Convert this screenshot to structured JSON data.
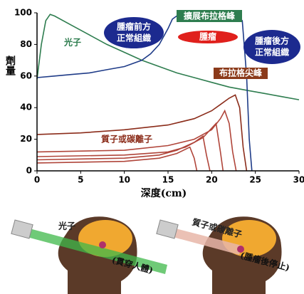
{
  "chart_data": {
    "type": "line",
    "x_label": "深度(cm)",
    "y_label": "劑量",
    "xlim": [
      0,
      30
    ],
    "xticks": [
      0,
      5,
      10,
      15,
      20,
      25,
      30
    ],
    "ylim": [
      0,
      100
    ],
    "yticks": [
      0,
      20,
      40,
      60,
      80,
      100
    ],
    "grid": false,
    "series": [
      {
        "name": "光子",
        "color": "#2e7d4f",
        "x": [
          0,
          0.5,
          1,
          1.5,
          2,
          4,
          6,
          8,
          10,
          12,
          14,
          16,
          18,
          20,
          22,
          24,
          26,
          28,
          30
        ],
        "values": [
          58,
          80,
          95,
          99,
          98,
          92,
          86,
          80,
          75,
          70,
          66,
          62,
          59,
          56,
          53,
          51,
          49,
          47,
          45
        ]
      },
      {
        "name": "擴展布拉格峰",
        "color": "#1f3c88",
        "x": [
          0,
          2,
          4,
          6,
          8,
          10,
          12,
          13,
          14,
          15,
          15.5,
          16,
          20,
          23,
          23.5,
          24,
          24.3,
          24.6
        ],
        "values": [
          59,
          60,
          61,
          62,
          64,
          66,
          70,
          74,
          80,
          90,
          96,
          98,
          98,
          98,
          95,
          60,
          20,
          0
        ]
      },
      {
        "name": "質子或碳離子",
        "color": "#8b2c1a",
        "x": [
          0,
          5,
          10,
          15,
          18,
          20,
          21,
          22,
          22.7,
          23.2,
          23.6,
          24
        ],
        "values": [
          23,
          24,
          26,
          29,
          33,
          38,
          42,
          46,
          48,
          40,
          15,
          0
        ]
      },
      {
        "color": "#b0453a",
        "x": [
          0,
          10,
          15,
          18,
          20,
          21,
          21.5,
          22,
          22.4,
          22.8
        ],
        "values": [
          12,
          13,
          16,
          20,
          26,
          33,
          38,
          30,
          12,
          0
        ]
      },
      {
        "color": "#b0453a",
        "x": [
          0,
          10,
          15,
          17,
          19,
          20,
          20.5,
          21,
          21.3
        ],
        "values": [
          9,
          10,
          12,
          15,
          21,
          27,
          30,
          12,
          0
        ]
      },
      {
        "color": "#b0453a",
        "x": [
          0,
          10,
          14,
          16,
          18,
          19,
          19.4,
          19.8
        ],
        "values": [
          7,
          8,
          10,
          13,
          18,
          22,
          10,
          0
        ]
      },
      {
        "color": "#b0453a",
        "x": [
          0,
          10,
          14,
          16,
          17.5,
          18,
          18.3
        ],
        "values": [
          5,
          6,
          8,
          11,
          15,
          8,
          0
        ]
      }
    ],
    "annotations": {
      "sobp": "擴展布拉格峰",
      "tumor": "腫瘤",
      "before": [
        "腫瘤前方",
        "正常組織"
      ],
      "after": [
        "腫瘤後方",
        "正常組織"
      ],
      "bragg_peak": "布拉格尖峰",
      "photon": "光子",
      "proton": "質子或碳離子"
    }
  },
  "illustration": {
    "photon": "光子",
    "photon_note": "(貫穿人體)",
    "proton": "質子或碳離子",
    "proton_note": "(腫瘤後停止)"
  }
}
